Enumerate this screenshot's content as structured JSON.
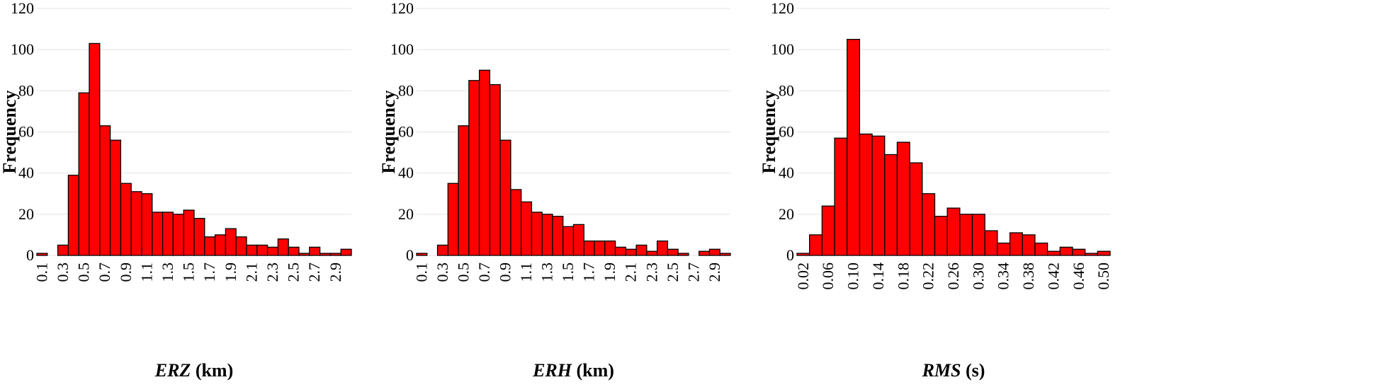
{
  "colors": {
    "bar_fill": "#ff0000",
    "bar_stroke": "#000000",
    "grid": "#e3e3e3"
  },
  "chart_data": [
    {
      "type": "bar",
      "ylabel": "Frequency",
      "xlabel_var": "ERZ",
      "xlabel_unit": " (km)",
      "ylim": [
        0,
        120
      ],
      "yticks": [
        0,
        20,
        40,
        60,
        80,
        100,
        120
      ],
      "grid": true,
      "xtick_labels": [
        "0.1",
        "0.3",
        "0.5",
        "0.7",
        "0.9",
        "1.1",
        "1.3",
        "1.5",
        "1.7",
        "1.9",
        "2.1",
        "2.3",
        "2.5",
        "2.7",
        "2.9"
      ],
      "values": [
        1,
        0,
        5,
        39,
        79,
        103,
        63,
        56,
        35,
        31,
        30,
        21,
        21,
        20,
        22,
        18,
        9,
        10,
        13,
        9,
        5,
        5,
        4,
        8,
        4,
        1,
        4,
        1,
        1,
        3
      ]
    },
    {
      "type": "bar",
      "ylabel": "Frequency",
      "xlabel_var": "ERH",
      "xlabel_unit": " (km)",
      "ylim": [
        0,
        120
      ],
      "yticks": [
        0,
        20,
        40,
        60,
        80,
        100,
        120
      ],
      "grid": true,
      "xtick_labels": [
        "0.1",
        "0.3",
        "0.5",
        "0.7",
        "0.9",
        "1.1",
        "1.3",
        "1.5",
        "1.7",
        "1.9",
        "2.1",
        "2.3",
        "2.5",
        "2.7",
        "2.9"
      ],
      "values": [
        1,
        0,
        5,
        35,
        63,
        85,
        90,
        83,
        56,
        32,
        26,
        21,
        20,
        19,
        14,
        15,
        7,
        7,
        7,
        4,
        3,
        5,
        2,
        7,
        3,
        1,
        0,
        2,
        3,
        1
      ]
    },
    {
      "type": "bar",
      "ylabel": "Frequency",
      "xlabel_var": "RMS",
      "xlabel_unit": " (s)",
      "ylim": [
        0,
        120
      ],
      "yticks": [
        0,
        20,
        40,
        60,
        80,
        100,
        120
      ],
      "grid": true,
      "xtick_labels": [
        "0.02",
        "0.06",
        "0.10",
        "0.14",
        "0.18",
        "0.22",
        "0.26",
        "0.30",
        "0.34",
        "0.38",
        "0.42",
        "0.46",
        "0.50"
      ],
      "values": [
        1,
        10,
        24,
        57,
        105,
        59,
        58,
        49,
        55,
        45,
        30,
        19,
        23,
        20,
        20,
        12,
        6,
        11,
        10,
        6,
        2,
        4,
        3,
        1,
        2
      ]
    }
  ]
}
